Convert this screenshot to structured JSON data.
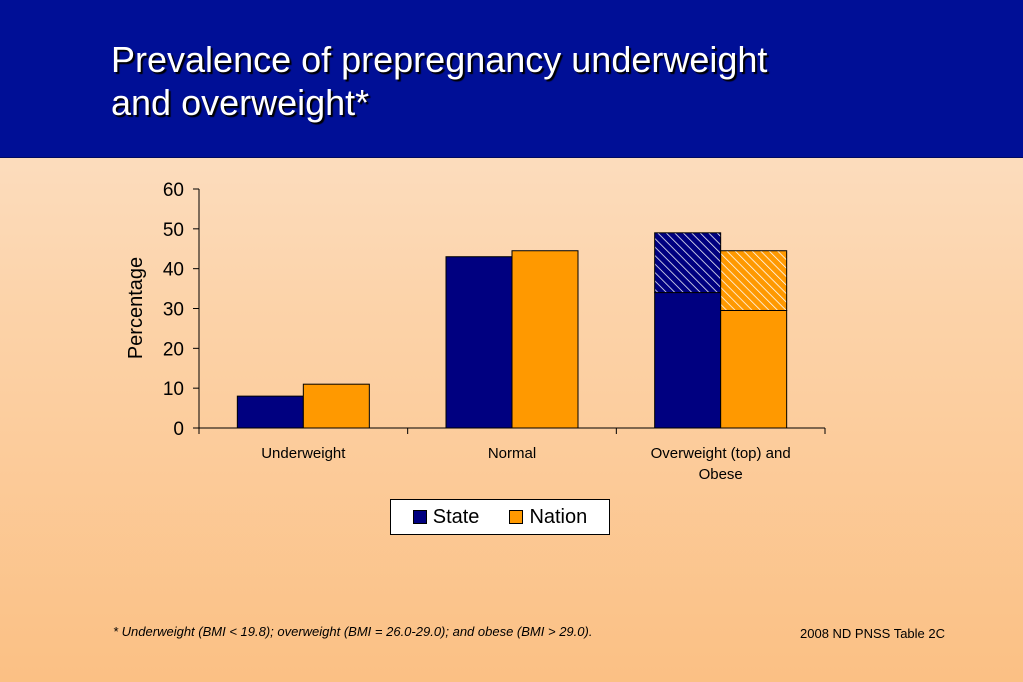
{
  "slide": {
    "title_lines": [
      "Prevalence of prepregnancy underweight",
      "and overweight*"
    ],
    "footnote": "*  Underweight (BMI < 19.8); overweight (BMI = 26.0-29.0); and obese (BMI > 29.0).",
    "source": "2008 ND PNSS Table 2C",
    "header_color": "#000f96"
  },
  "chart_data": {
    "type": "bar",
    "stacked_last_category": true,
    "categories": [
      "Underweight",
      "Normal",
      "Overweight (top) and Obese"
    ],
    "category_label_lines": [
      [
        "Underweight"
      ],
      [
        "Normal"
      ],
      [
        "Overweight (top) and",
        "Obese"
      ]
    ],
    "ylabel": "Percentage",
    "xlabel": "",
    "ylim": [
      0,
      60
    ],
    "yticks": [
      0,
      10,
      20,
      30,
      40,
      50,
      60
    ],
    "grid": false,
    "legend": "bottom",
    "series": [
      {
        "name": "State",
        "color": "#000080",
        "values": [
          8,
          43,
          34
        ],
        "overweight_top": [
          null,
          null,
          15
        ]
      },
      {
        "name": "Nation",
        "color": "#ff9900",
        "values": [
          11,
          44.5,
          29.5
        ],
        "overweight_top": [
          null,
          null,
          15
        ]
      }
    ]
  }
}
